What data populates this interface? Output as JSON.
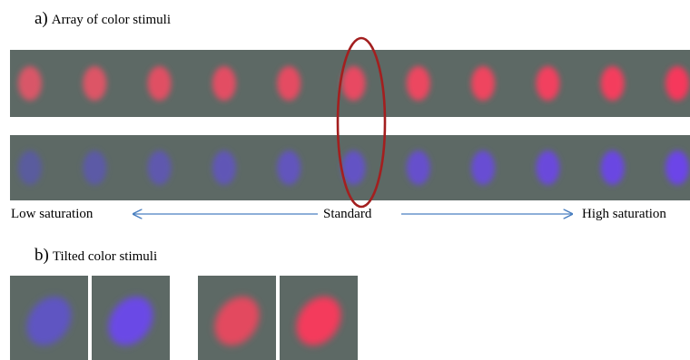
{
  "panel_a": {
    "letter": "a)",
    "caption": "Array of color stimuli",
    "red_row": [
      "#d95768",
      "#dd5566",
      "#e05064",
      "#e34e63",
      "#e54c62",
      "#e84a62",
      "#ec4660",
      "#ef445f",
      "#f2405f",
      "#f43c5d",
      "#f6385b"
    ],
    "blue_row": [
      "#5a5c9e",
      "#5c5aa6",
      "#5e58ae",
      "#6057b6",
      "#6255bd",
      "#6453c4",
      "#6650cc",
      "#684dd3",
      "#6a4adb",
      "#6b47e2",
      "#6c44e8"
    ],
    "stimulus_background": "#5d6965",
    "highlight_color": "#a31f1f",
    "scale": {
      "left_label": "Low saturation",
      "center_label": "Standard",
      "right_label": "High saturation",
      "arrow_color": "#4a7fc0"
    }
  },
  "panel_b": {
    "letter": "b)",
    "caption": "Tilted color stimuli",
    "tiles": [
      {
        "color": "#5e55c2"
      },
      {
        "color": "#6a48e6"
      },
      {
        "color": "#e3485e"
      },
      {
        "color": "#f43a5c"
      }
    ]
  }
}
